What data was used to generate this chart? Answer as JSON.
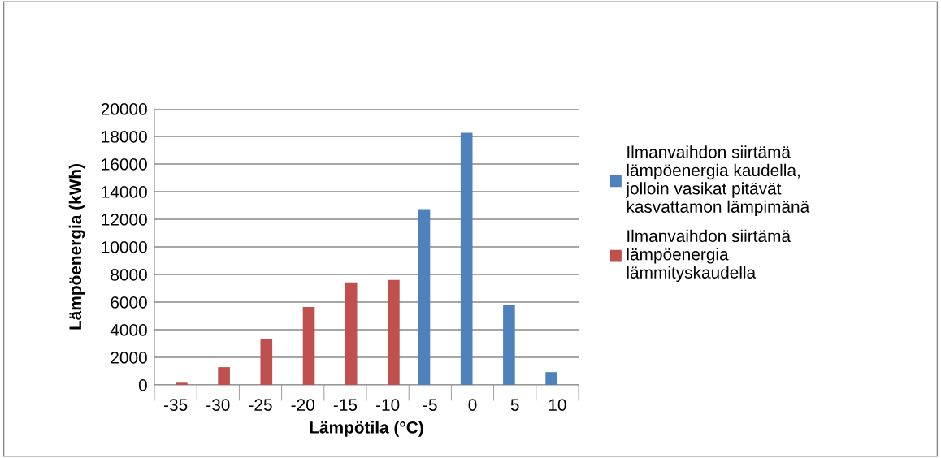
{
  "chart_data": {
    "type": "bar",
    "xlabel": "Lämpötila (°C)",
    "ylabel": "Lämpöenergia (kWh)",
    "categories": [
      "-35",
      "-30",
      "-25",
      "-20",
      "-15",
      "-10",
      "-5",
      "0",
      "5",
      "10"
    ],
    "series": [
      {
        "name": "Ilmanvaihdon siirtämä lämpöenergia kaudella, jolloin vasikat pitävät kasvattamon lämpimänä",
        "color": "#4f81bd",
        "values": [
          null,
          null,
          null,
          null,
          null,
          null,
          12730,
          18260,
          5780,
          930
        ]
      },
      {
        "name": "Ilmanvaihdon siirtämä lämpöenergia lämmityskaudella",
        "color": "#c0504d",
        "values": [
          160,
          1290,
          3340,
          5640,
          7430,
          7610,
          null,
          null,
          null,
          null
        ]
      }
    ],
    "ylim": [
      0,
      20000
    ],
    "yticks": [
      0,
      2000,
      4000,
      6000,
      8000,
      10000,
      12000,
      14000,
      16000,
      18000,
      20000
    ],
    "grid": "y",
    "legend": "right"
  }
}
